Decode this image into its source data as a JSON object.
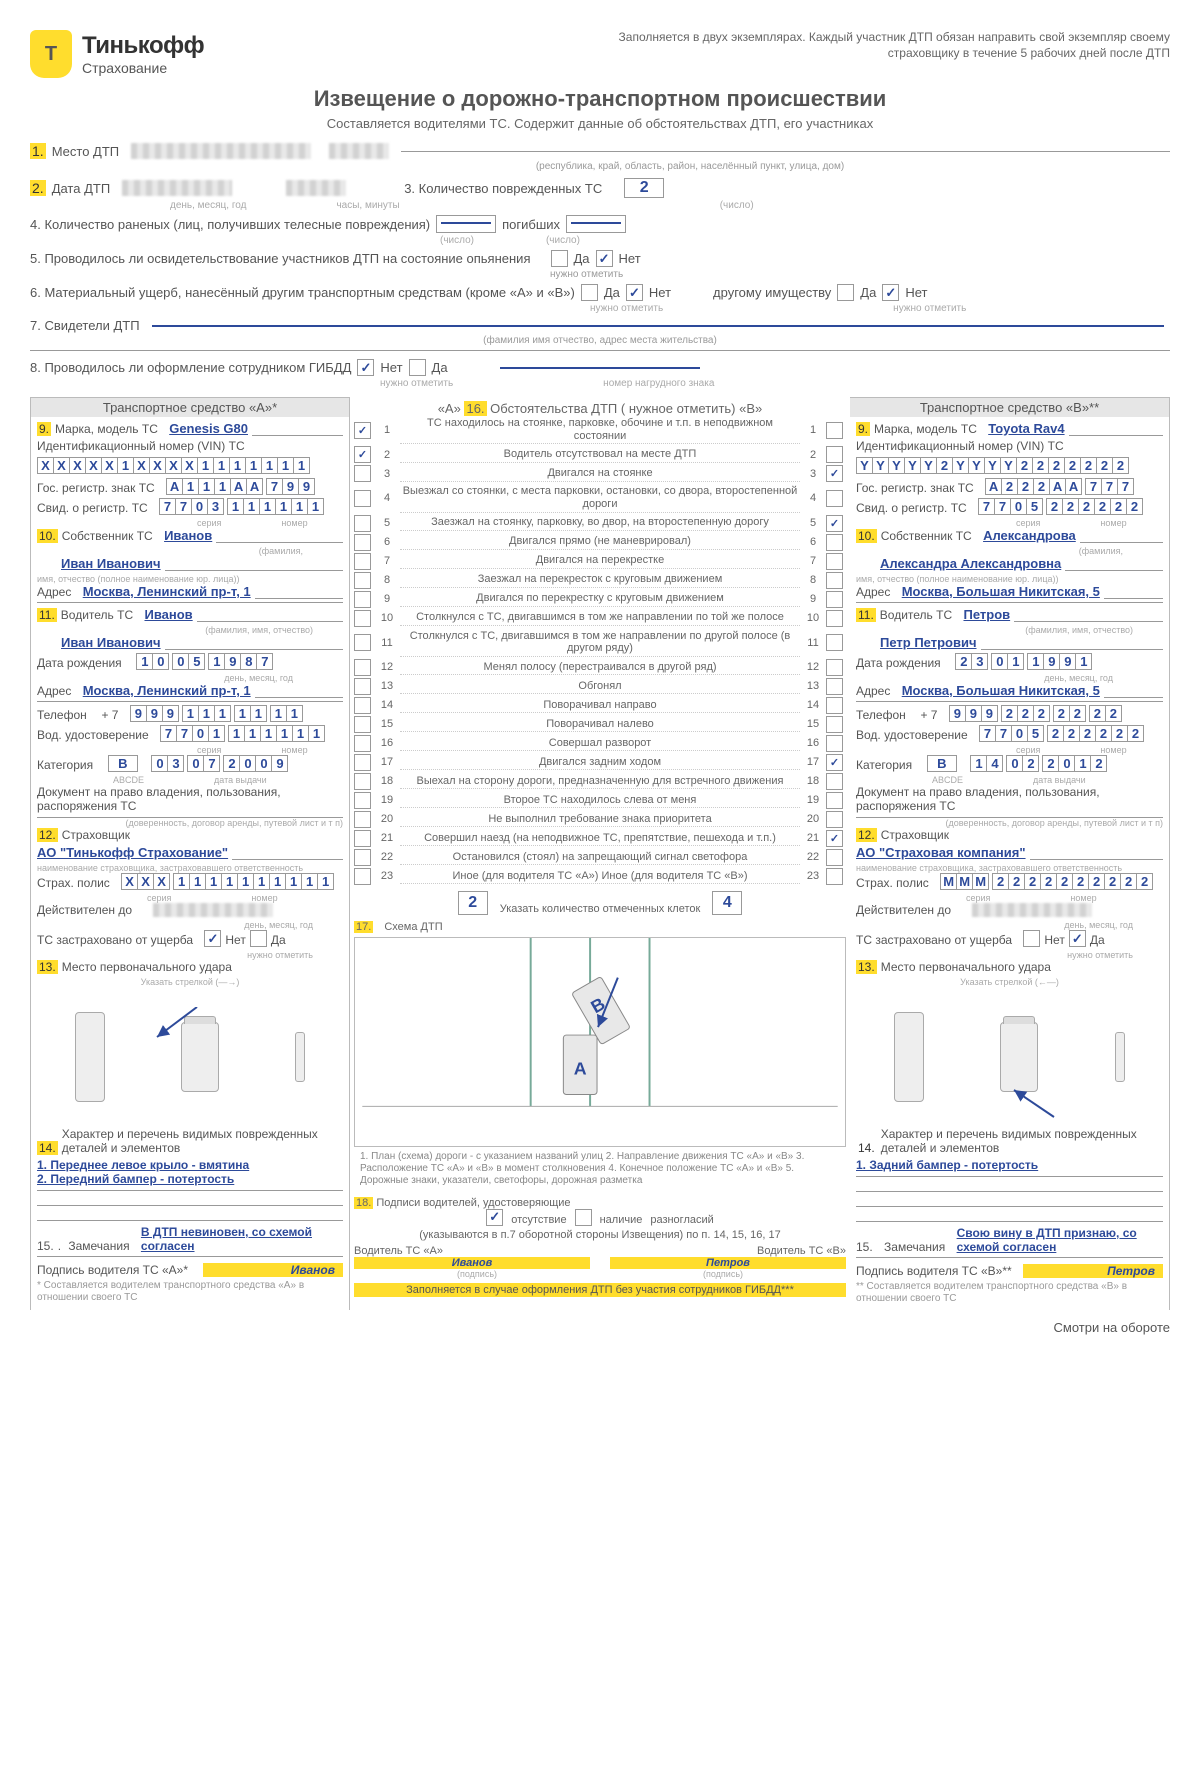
{
  "brand": {
    "name": "Тинькофф",
    "sub": "Страхование"
  },
  "header_note": "Заполняется в двух экземплярах. Каждый участник ДТП обязан направить свой экземпляр своему страховщику в течение 5 рабочих дней после ДТП",
  "title": "Извещение о дорожно-транспортном происшествии",
  "subtitle": "Составляется водителями ТС. Содержит данные об обстоятельствах ДТП, его участниках",
  "top": {
    "loc_num": "1.",
    "loc_label": "Место ДТП",
    "loc_caption": "(республика, край, область, район, населённый пункт, улица, дом)",
    "date_num": "2.",
    "date_label": "Дата ДТП",
    "date_cap": "день, месяц, год",
    "time_cap": "часы, минуты",
    "damaged_label": "3. Количество поврежденных ТС",
    "damaged_val": "2",
    "damaged_cap": "(число)",
    "injured_label": "4. Количество раненых (лиц, получивших телесные повреждения)",
    "injured_cap": "(число)",
    "dead_label": "погибших",
    "dead_cap": "(число)",
    "exam_label": "5. Проводилось ли освидетельствование участников ДТП на состояние опьянения",
    "yes": "Да",
    "no": "Нет",
    "mark_cap": "нужно отметить",
    "mat_label": "6. Материальный ущерб, нанесённый другим транспортным средствам (кроме «А» и «В»)",
    "other_prop": "другому имуществу",
    "witness_label": "7. Свидетели ДТП",
    "witness_cap": "(фамилия имя отчество, адрес места жительства)",
    "gibdd_label": "8. Проводилось ли оформление сотрудником ГИБДД",
    "gibdd_no": "Нет",
    "gibdd_yes": "Да",
    "gibdd_cap": "нужно отметить",
    "badge_cap": "номер нагрудного знака"
  },
  "vehA": {
    "head": "Транспортное средство «А»*",
    "make_num": "9.",
    "make_label": "Марка, модель ТС",
    "make_val": "Genesis G80",
    "vin_label": "Идентификационный номер (VIN) ТС",
    "vin": [
      "X",
      "X",
      "X",
      "X",
      "X",
      "1",
      "X",
      "X",
      "X",
      "X",
      "1",
      "1",
      "1",
      "1",
      "1",
      "1",
      "1"
    ],
    "plate_label": "Гос. регистр. знак ТС",
    "plate": [
      "A",
      "1",
      "1",
      "1",
      "A",
      "A",
      "7",
      "9",
      "9"
    ],
    "reg_label": "Свид. о регистр. ТС",
    "reg": [
      "7",
      "7",
      "0",
      "3",
      "1",
      "1",
      "1",
      "1",
      "1",
      "1"
    ],
    "reg_cap_l": "серия",
    "reg_cap_r": "номер",
    "owner_num": "10.",
    "owner_label": "Собственник ТС",
    "owner_name1": "Иванов",
    "owner_name2": "Иван Иванович",
    "owner_cap1": "(фамилия,",
    "owner_cap2": "имя, отчество (полное наименование юр. лица))",
    "addr_label": "Адрес",
    "owner_addr": "Москва, Ленинский пр-т, 1",
    "driver_num": "11.",
    "driver_label": "Водитель ТС",
    "driver_name1": "Иванов",
    "driver_cap": "(фамилия, имя, отчество)",
    "driver_name2": "Иван Иванович",
    "dob_label": "Дата рождения",
    "dob": [
      "1",
      "0",
      "0",
      "5",
      "1",
      "9",
      "8",
      "7"
    ],
    "dob_cap": "день, месяц, год",
    "driver_addr": "Москва, Ленинский пр-т, 1",
    "phone_label": "Телефон",
    "phone_prefix": "+ 7",
    "phone": [
      "9",
      "9",
      "9",
      "1",
      "1",
      "1",
      "1",
      "1",
      "1",
      "1"
    ],
    "lic_label": "Вод. удостоверение",
    "lic": [
      "7",
      "7",
      "0",
      "1",
      "1",
      "1",
      "1",
      "1",
      "1",
      "1"
    ],
    "cat_label": "Категория",
    "cat_val": "B",
    "cat_cap": "ABCDE",
    "cat_date": [
      "0",
      "3",
      "0",
      "7",
      "2",
      "0",
      "0",
      "9"
    ],
    "cat_date_cap": "дата выдачи",
    "ownership_doc": "Документ на право владения, пользования, распоряжения ТС",
    "ownership_cap": "(доверенность, договор аренды, путевой лист и т п)",
    "insurer_num": "12.",
    "insurer_label": "Страховщик",
    "insurer_name": "АО \"Тинькофф Страхование\"",
    "insurer_cap": "наименование страховщика, застраховавшего ответственность",
    "policy_label": "Страх. полис",
    "policy": [
      "X",
      "X",
      "X",
      "1",
      "1",
      "1",
      "1",
      "1",
      "1",
      "1",
      "1",
      "1",
      "1"
    ],
    "valid_label": "Действителен до",
    "valid_cap": "день, месяц, год",
    "dmg_ins_label": "ТС застраховано от ущерба",
    "impact_num": "13.",
    "impact_label": "Место первоначального удара",
    "impact_cap": "Указать стрелкой (—→)",
    "dmg_num": "14.",
    "dmg_label": "Характер и перечень видимых поврежденных деталей и элементов",
    "dmg_line1": "1. Переднее левое крыло - вмятина",
    "dmg_line2": "2. Передний бампер - потертость",
    "note_num": "15.",
    "note_label": "Замечания",
    "note_text": "В ДТП невиновен, со схемой согласен",
    "sig_label": "Подпись водителя ТС «A»*",
    "sig_val": "Иванов",
    "foot": "* Составляется водителем транспортного средства «А» в отношении своего ТС"
  },
  "vehB": {
    "head": "Транспортное средство «В»**",
    "make_val": "Toyota Rav4",
    "vin": [
      "Y",
      "Y",
      "Y",
      "Y",
      "Y",
      "2",
      "Y",
      "Y",
      "Y",
      "Y",
      "2",
      "2",
      "2",
      "2",
      "2",
      "2",
      "2"
    ],
    "plate": [
      "A",
      "2",
      "2",
      "2",
      "A",
      "A",
      "7",
      "7",
      "7"
    ],
    "reg": [
      "7",
      "7",
      "0",
      "5",
      "2",
      "2",
      "2",
      "2",
      "2",
      "2"
    ],
    "owner_name1": "Александрова",
    "owner_name2": "Александра Александровна",
    "owner_addr": "Москва, Большая Никитская, 5",
    "driver_name1": "Петров",
    "driver_name2": "Петр Петрович",
    "dob": [
      "2",
      "3",
      "0",
      "1",
      "1",
      "9",
      "9",
      "1"
    ],
    "driver_addr": "Москва, Большая Никитская, 5",
    "phone": [
      "9",
      "9",
      "9",
      "2",
      "2",
      "2",
      "2",
      "2",
      "2",
      "2"
    ],
    "lic": [
      "7",
      "7",
      "0",
      "5",
      "2",
      "2",
      "2",
      "2",
      "2",
      "2"
    ],
    "cat_val": "B",
    "cat_date": [
      "1",
      "4",
      "0",
      "2",
      "2",
      "0",
      "1",
      "2"
    ],
    "insurer_name": "АО \"Страховая компания\"",
    "policy": [
      "М",
      "М",
      "М",
      "2",
      "2",
      "2",
      "2",
      "2",
      "2",
      "2",
      "2",
      "2",
      "2"
    ],
    "dmg_line1": "1. Задний бампер - потертость",
    "note_text": "Свою вину в ДТП признаю, со схемой согласен",
    "sig_label": "Подпись водителя ТС «В»**",
    "sig_val": "Петров",
    "foot": "** Составляется водителем транспортного средства «В» в отношении своего ТС"
  },
  "mid": {
    "head_pre": "«А»",
    "head_num": "16.",
    "head_text": "Обстоятельства ДТП ( нужное отметить)",
    "head_post": "«В»",
    "circumstances": [
      {
        "n": 1,
        "t": "ТС находилось на стоянке, парковке, обочине и т.п. в неподвижном состоянии",
        "a": true,
        "b": false
      },
      {
        "n": 2,
        "t": "Водитель отсутствовал на месте ДТП",
        "a": true,
        "b": false
      },
      {
        "n": 3,
        "t": "Двигался на стоянке",
        "a": false,
        "b": true
      },
      {
        "n": 4,
        "t": "Выезжал со стоянки, с места парковки, остановки, со двора, второстепенной дороги",
        "a": false,
        "b": false
      },
      {
        "n": 5,
        "t": "Заезжал на стоянку, парковку, во двор, на второстепенную дорогу",
        "a": false,
        "b": true
      },
      {
        "n": 6,
        "t": "Двигался прямо (не маневрировал)",
        "a": false,
        "b": false
      },
      {
        "n": 7,
        "t": "Двигался на перекрестке",
        "a": false,
        "b": false
      },
      {
        "n": 8,
        "t": "Заезжал на перекресток с круговым движением",
        "a": false,
        "b": false
      },
      {
        "n": 9,
        "t": "Двигался по перекрестку с круговым движением",
        "a": false,
        "b": false
      },
      {
        "n": 10,
        "t": "Столкнулся с ТС, двигавшимся в том же направлении по той же полосе",
        "a": false,
        "b": false
      },
      {
        "n": 11,
        "t": "Столкнулся с ТС, двигавшимся в том же направлении по другой полосе (в другом ряду)",
        "a": false,
        "b": false
      },
      {
        "n": 12,
        "t": "Менял полосу (перестраивался в другой ряд)",
        "a": false,
        "b": false
      },
      {
        "n": 13,
        "t": "Обгонял",
        "a": false,
        "b": false
      },
      {
        "n": 14,
        "t": "Поворачивал направо",
        "a": false,
        "b": false
      },
      {
        "n": 15,
        "t": "Поворачивал налево",
        "a": false,
        "b": false
      },
      {
        "n": 16,
        "t": "Совершал разворот",
        "a": false,
        "b": false
      },
      {
        "n": 17,
        "t": "Двигался задним ходом",
        "a": false,
        "b": true
      },
      {
        "n": 18,
        "t": "Выехал на сторону дороги, предназначенную для встречного движения",
        "a": false,
        "b": false
      },
      {
        "n": 19,
        "t": "Второе ТС находилось слева от меня",
        "a": false,
        "b": false
      },
      {
        "n": 20,
        "t": "Не выполнил требование знака приоритета",
        "a": false,
        "b": false
      },
      {
        "n": 21,
        "t": "Совершил наезд (на неподвижное ТС, препятствие, пешехода и т.п.)",
        "a": false,
        "b": true
      },
      {
        "n": 22,
        "t": "Остановился (стоял) на запрещающий сигнал светофора",
        "a": false,
        "b": false
      },
      {
        "n": 23,
        "t": "Иное (для водителя ТС «А») Иное (для водителя ТС «В»)",
        "a": false,
        "b": false
      }
    ],
    "count_label": "Указать количество отмеченных клеток",
    "cntA": "2",
    "cntB": "4",
    "scheme_num": "17.",
    "scheme_label": "Схема ДТП",
    "scheme_caption": "1. План (схема) дороги - с указанием названий улиц 2. Направление движения ТС «А» и «В» 3. Расположение ТС «А» и «В» в момент столкновения 4. Конечное положение ТС «А» и «В» 5. Дорожные знаки, указатели, светофоры, дорожная разметка",
    "sign_num": "18.",
    "sign_label": "Подписи водителей, удостоверяющие",
    "sign_opt1": "отсутствие",
    "sign_opt2": "наличие",
    "sign_opt3": "разногласий",
    "sign_sub": "(указываются в п.7 оборотной стороны Извещения) по п. 14, 15, 16, 17",
    "sig_a_label": "Водитель ТС «А»",
    "sig_b_label": "Водитель ТС «В»",
    "sig_a_val": "Иванов",
    "sig_b_val": "Петров",
    "sig_cap": "(подпись)",
    "foot": "Заполняется в случае оформления ДТП без участия сотрудников ГИБДД***"
  },
  "footer": "Смотри на обороте"
}
